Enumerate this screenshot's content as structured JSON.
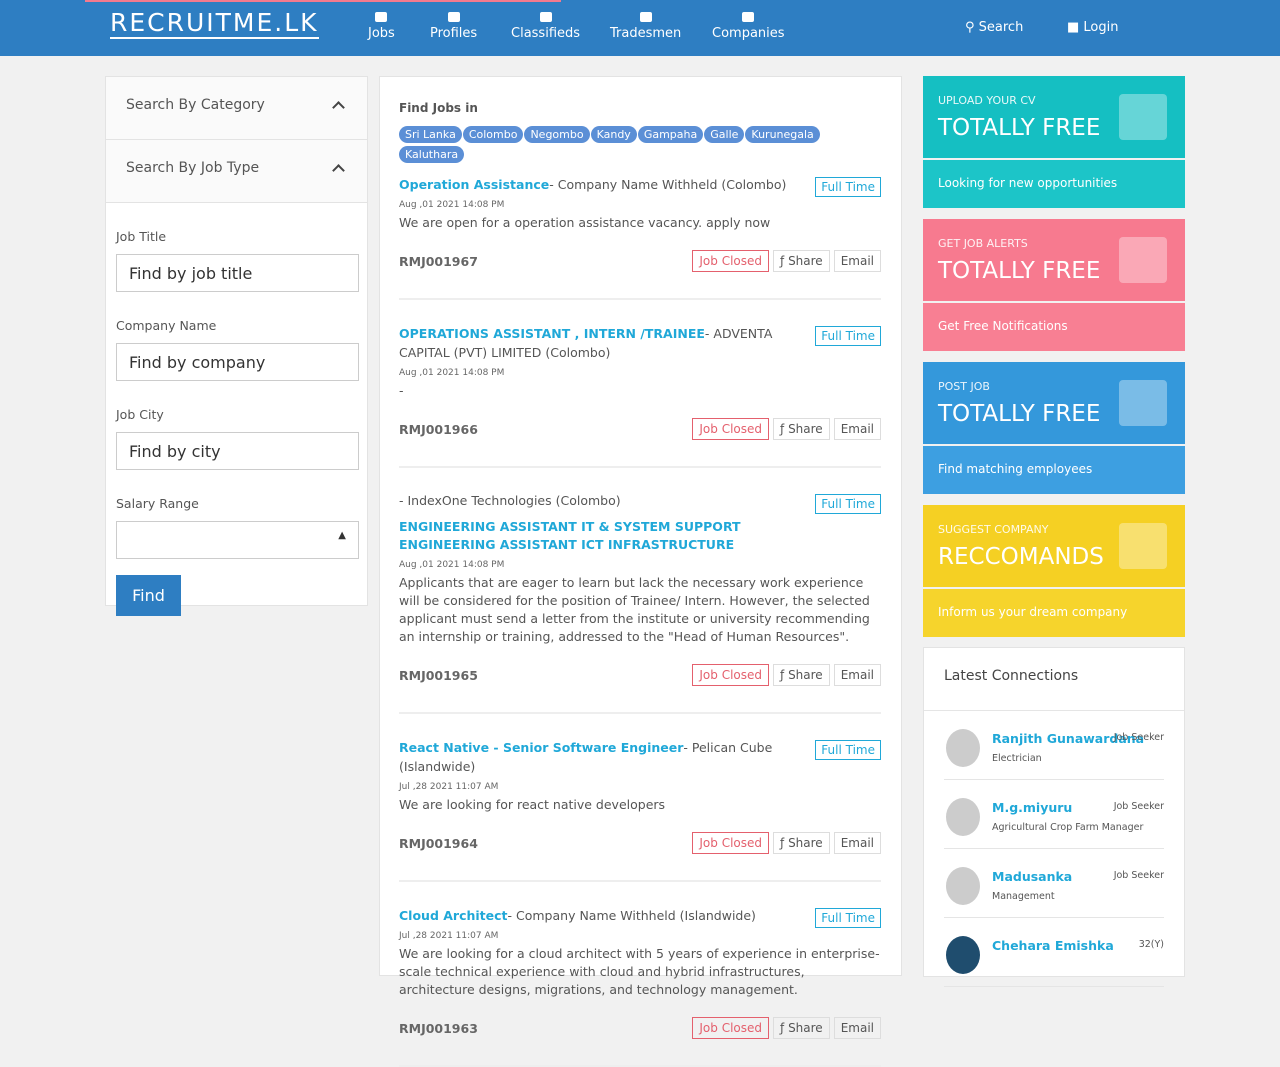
{
  "header": {
    "logo": "RECRUITME.LK",
    "nav": [
      "Jobs",
      "Profiles",
      "Classifieds",
      "Tradesmen",
      "Companies"
    ],
    "search": "Search",
    "login": "Login"
  },
  "sidebar": {
    "sections": [
      "Search By Category",
      "Search By Job Type"
    ],
    "fields": [
      {
        "label": "Job Title",
        "placeholder": "Find by job title"
      },
      {
        "label": "Company Name",
        "placeholder": "Find by company"
      },
      {
        "label": "Job City",
        "placeholder": "Find by city"
      }
    ],
    "salary_label": "Salary Range",
    "button": "Find"
  },
  "jobs": {
    "heading": "Find Jobs in",
    "cities": [
      "Sri Lanka",
      "Colombo",
      "Negombo",
      "Kandy",
      "Gampaha",
      "Galle",
      "Kurunegala",
      "Kaluthara"
    ],
    "labels": {
      "closed": "Job Closed",
      "share": "Share",
      "email": "Email"
    },
    "items": [
      {
        "title": "Operation Assistance",
        "company": "- Company Name Withheld (Colombo)",
        "type": "Full Time",
        "date": "Aug ,01 2021 14:08 PM",
        "description": "We are open for a operation assistance vacancy. apply now",
        "id": "RMJ001967"
      },
      {
        "title": "OPERATIONS ASSISTANT , INTERN /TRAINEE",
        "company": "- ADVENTA CAPITAL (PVT) LIMITED (Colombo)",
        "type": "Full Time",
        "date": "Aug ,01 2021 14:08 PM",
        "description": "-",
        "id": "RMJ001966"
      },
      {
        "title": "ENGINEERING ASSISTANT IT & SYSTEM SUPPORT ENGINEERING ASSISTANT ICT INFRASTRUCTURE",
        "company": "- IndexOne Technologies (Colombo)",
        "type": "Full Time",
        "date": "Aug ,01 2021 14:08 PM",
        "description": "Applicants that are eager to learn but lack the necessary work experience will be considered for the position of Trainee/ Intern. However, the selected applicant must send a letter from the institute or university recommending an internship or training, addressed to the \"Head of Human Resources\".",
        "id": "RMJ001965"
      },
      {
        "title": "React Native - Senior Software Engineer",
        "company": "- Pelican Cube (Islandwide)",
        "type": "Full Time",
        "date": "Jul ,28 2021 11:07 AM",
        "description": "We are looking for react native developers",
        "id": "RMJ001964"
      },
      {
        "title": "Cloud Architect",
        "company": "- Company Name Withheld (Islandwide)",
        "type": "Full Time",
        "date": "Jul ,28 2021 11:07 AM",
        "description": "We are looking for a cloud architect with 5 years of experience in enterprise-scale technical experience with cloud and hybrid infrastructures, architecture designs, migrations, and technology management.",
        "id": "RMJ001963"
      }
    ]
  },
  "promos": [
    {
      "label": "UPLOAD YOUR CV",
      "headline": "TOTALLY FREE",
      "footer": "Looking for new opportunities"
    },
    {
      "label": "GET JOB ALERTS",
      "headline": "TOTALLY FREE",
      "footer": "Get Free Notifications"
    },
    {
      "label": "POST JOB",
      "headline": "TOTALLY FREE",
      "footer": "Find matching employees"
    },
    {
      "label": "SUGGEST COMPANY",
      "headline": "RECCOMANDS",
      "footer": "Inform us your dream company"
    }
  ],
  "connections": {
    "heading": "Latest Connections",
    "items": [
      {
        "name": "Ranjith Gunawardana",
        "tag": "Job Seeker",
        "role": "Electrician"
      },
      {
        "name": "M.g.miyuru",
        "tag": "Job Seeker",
        "role": "Agricultural Crop Farm Manager"
      },
      {
        "name": "Madusanka",
        "tag": "Job Seeker",
        "role": "Management"
      },
      {
        "name": "Chehara Emishka",
        "tag": "32(Y)",
        "role": ""
      }
    ]
  }
}
